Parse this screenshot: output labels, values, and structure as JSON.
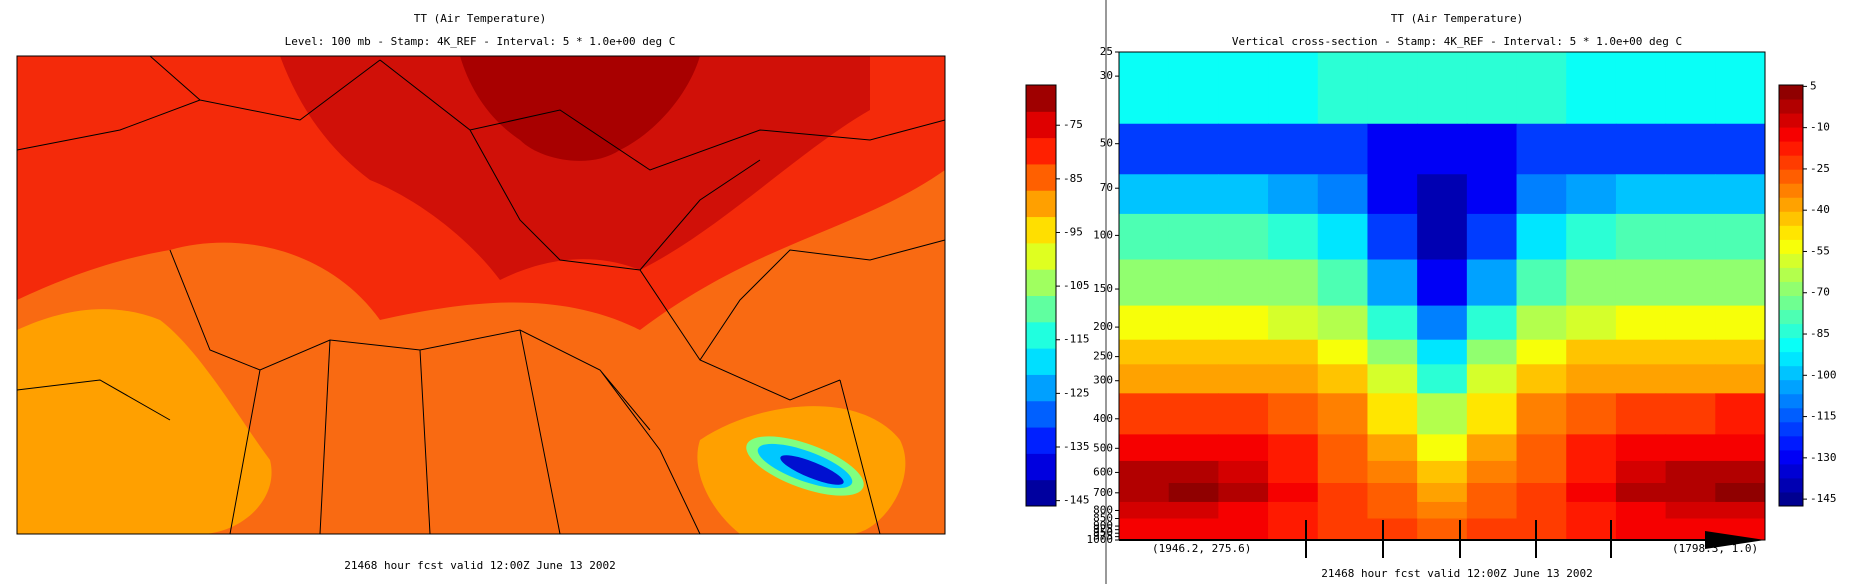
{
  "chart_data": [
    {
      "type": "map",
      "title": "TT (Air Temperature)",
      "subtitle": "Level: 100 mb - Stamp: 4K_REF - Interval: 5 * 1.0e+00 deg C",
      "footer": "21468 hour fcst valid 12:00Z June 13 2002",
      "clim": [
        -146,
        -67.5
      ],
      "colorbar_ticks": [
        -75,
        -85,
        -95,
        -105,
        -115,
        -125,
        -135,
        -145
      ],
      "colors": [
        "#00007f",
        "#0000ff",
        "#0080ff",
        "#00ffff",
        "#80ff80",
        "#ffff00",
        "#ff8000",
        "#ff0000",
        "#7f0000"
      ]
    },
    {
      "type": "heatmap",
      "title": "TT (Air Temperature)",
      "subtitle": "Vertical cross-section - Stamp: 4K_REF - Interval: 5 * 1.0e+00 deg C",
      "footer": "21468 hour fcst valid 12:00Z June 13 2002",
      "x_labels": [
        "(1946.2, 275.6)",
        "(1798.3, 1.0)"
      ],
      "ylim": [
        25,
        1000
      ],
      "yscale": "log",
      "yticks": [
        25,
        30,
        50,
        70,
        100,
        150,
        200,
        250,
        300,
        400,
        500,
        600,
        700,
        800,
        850,
        900,
        925,
        950,
        975,
        1000
      ],
      "level_edges": [
        25,
        43,
        63,
        85,
        120,
        170,
        220,
        265,
        330,
        450,
        550,
        650,
        750,
        850,
        1000
      ],
      "z": [
        [
          -88,
          -88,
          -88,
          -88,
          -86,
          -86,
          -84,
          -86,
          -86,
          -88,
          -88,
          -88,
          -88
        ],
        [
          -118,
          -118,
          -118,
          -118,
          -122,
          -128,
          -132,
          -128,
          -122,
          -118,
          -118,
          -118,
          -118
        ],
        [
          -98,
          -98,
          -100,
          -102,
          -110,
          -128,
          -140,
          -128,
          -110,
          -102,
          -100,
          -98,
          -98
        ],
        [
          -78,
          -78,
          -80,
          -82,
          -92,
          -118,
          -138,
          -118,
          -92,
          -82,
          -80,
          -78,
          -78
        ],
        [
          -66,
          -66,
          -67,
          -68,
          -80,
          -102,
          -128,
          -102,
          -80,
          -68,
          -67,
          -66,
          -66
        ],
        [
          -54,
          -54,
          -54,
          -56,
          -65,
          -82,
          -110,
          -82,
          -65,
          -56,
          -54,
          -54,
          -54
        ],
        [
          -42,
          -42,
          -42,
          -44,
          -55,
          -68,
          -95,
          -68,
          -55,
          -44,
          -42,
          -42,
          -42
        ],
        [
          -36,
          -36,
          -36,
          -38,
          -45,
          -58,
          -82,
          -58,
          -45,
          -38,
          -36,
          -36,
          -36
        ],
        [
          -22,
          -22,
          -24,
          -28,
          -35,
          -48,
          -65,
          -48,
          -35,
          -28,
          -24,
          -22,
          -20
        ],
        [
          -12,
          -12,
          -14,
          -20,
          -30,
          -40,
          -55,
          -40,
          -30,
          -20,
          -14,
          -12,
          -10
        ],
        [
          -4,
          -2,
          -6,
          -16,
          -28,
          -34,
          -45,
          -34,
          -28,
          -16,
          -6,
          -4,
          -2
        ],
        [
          0,
          2,
          -2,
          -12,
          -24,
          -30,
          -38,
          -30,
          -24,
          -12,
          -2,
          0,
          2
        ],
        [
          -8,
          -6,
          -10,
          -16,
          -22,
          -26,
          -32,
          -26,
          -22,
          -16,
          -10,
          -8,
          -6
        ],
        [
          -14,
          -12,
          -14,
          -18,
          -22,
          -24,
          -28,
          -24,
          -22,
          -18,
          -14,
          -12,
          -12
        ]
      ],
      "clim": [
        -147.5,
        5.5
      ],
      "colorbar_ticks": [
        5,
        -10,
        -25,
        -40,
        -55,
        -70,
        -85,
        -100,
        -115,
        -130,
        -145
      ],
      "colors": [
        "#00007f",
        "#0000ff",
        "#0080ff",
        "#00ffff",
        "#80ff80",
        "#ffff00",
        "#ff8000",
        "#ff0000",
        "#7f0000"
      ]
    }
  ]
}
